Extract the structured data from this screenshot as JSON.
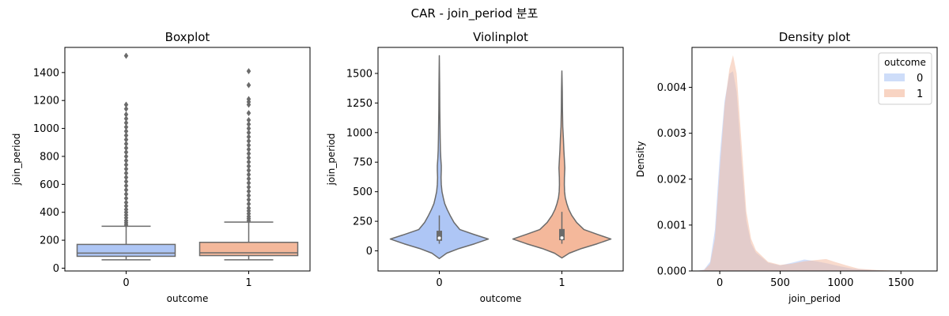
{
  "figure": {
    "suptitle": "CAR - join_period 분포"
  },
  "chart_data": [
    {
      "type": "box",
      "title": "Boxplot",
      "xlabel": "outcome",
      "ylabel": "join_period",
      "categories": [
        "0",
        "1"
      ],
      "ylim": [
        -20,
        1580
      ],
      "yticks": [
        0,
        200,
        400,
        600,
        800,
        1000,
        1200,
        1400
      ],
      "colors": [
        "#aec6f5",
        "#f4b89b"
      ],
      "boxes": [
        {
          "category": "0",
          "whislo": 60,
          "q1": 85,
          "median": 108,
          "q3": 170,
          "whishi": 300,
          "fliers": [
            310,
            325,
            340,
            360,
            380,
            400,
            420,
            445,
            470,
            500,
            530,
            560,
            590,
            620,
            650,
            680,
            710,
            740,
            770,
            800,
            830,
            860,
            890,
            920,
            950,
            980,
            1010,
            1040,
            1070,
            1100,
            1140,
            1170,
            1520
          ]
        },
        {
          "category": "1",
          "whislo": 60,
          "q1": 90,
          "median": 110,
          "q3": 185,
          "whishi": 330,
          "fliers": [
            340,
            355,
            370,
            390,
            410,
            430,
            460,
            490,
            520,
            550,
            580,
            610,
            640,
            670,
            700,
            730,
            760,
            790,
            820,
            850,
            880,
            910,
            940,
            970,
            1000,
            1030,
            1060,
            1110,
            1170,
            1190,
            1210,
            1310,
            1410
          ]
        }
      ]
    },
    {
      "type": "violin",
      "title": "Violinplot",
      "xlabel": "outcome",
      "ylabel": "join_period",
      "categories": [
        "0",
        "1"
      ],
      "ylim": [
        -170,
        1720
      ],
      "yticks": [
        0,
        250,
        500,
        750,
        1000,
        1250,
        1500
      ],
      "colors": [
        "#aec6f5",
        "#f4b89b"
      ],
      "violins": [
        {
          "category": "0",
          "ymin": -65,
          "ymax": 1650,
          "q1": 85,
          "median": 108,
          "q3": 170,
          "whislo": 60,
          "whishi": 300,
          "profile": [
            [
              -65,
              0.0
            ],
            [
              -20,
              0.15
            ],
            [
              20,
              0.4
            ],
            [
              60,
              0.72
            ],
            [
              100,
              1.0
            ],
            [
              140,
              0.7
            ],
            [
              180,
              0.42
            ],
            [
              240,
              0.3
            ],
            [
              300,
              0.22
            ],
            [
              350,
              0.16
            ],
            [
              400,
              0.11
            ],
            [
              450,
              0.08
            ],
            [
              500,
              0.055
            ],
            [
              560,
              0.04
            ],
            [
              620,
              0.035
            ],
            [
              680,
              0.04
            ],
            [
              720,
              0.04
            ],
            [
              780,
              0.03
            ],
            [
              850,
              0.022
            ],
            [
              950,
              0.018
            ],
            [
              1050,
              0.014
            ],
            [
              1200,
              0.01
            ],
            [
              1400,
              0.007
            ],
            [
              1650,
              0.0
            ]
          ]
        },
        {
          "category": "1",
          "ymin": -60,
          "ymax": 1520,
          "q1": 90,
          "median": 110,
          "q3": 185,
          "whislo": 60,
          "whishi": 330,
          "profile": [
            [
              -60,
              0.0
            ],
            [
              -20,
              0.15
            ],
            [
              20,
              0.4
            ],
            [
              60,
              0.72
            ],
            [
              100,
              1.0
            ],
            [
              140,
              0.72
            ],
            [
              180,
              0.45
            ],
            [
              240,
              0.3
            ],
            [
              300,
              0.2
            ],
            [
              350,
              0.14
            ],
            [
              400,
              0.1
            ],
            [
              450,
              0.07
            ],
            [
              500,
              0.055
            ],
            [
              560,
              0.05
            ],
            [
              620,
              0.052
            ],
            [
              700,
              0.06
            ],
            [
              780,
              0.05
            ],
            [
              850,
              0.04
            ],
            [
              950,
              0.03
            ],
            [
              1050,
              0.018
            ],
            [
              1200,
              0.012
            ],
            [
              1350,
              0.008
            ],
            [
              1520,
              0.0
            ]
          ]
        }
      ]
    },
    {
      "type": "area",
      "title": "Density plot",
      "xlabel": "join_period",
      "ylabel": "Density",
      "xlim": [
        -230,
        1800
      ],
      "ylim": [
        0,
        0.00487
      ],
      "xticks": [
        0,
        500,
        1000,
        1500
      ],
      "yticks": [
        0.0,
        0.001,
        0.002,
        0.003,
        0.004
      ],
      "ytick_labels": [
        "0.000",
        "0.001",
        "0.002",
        "0.003",
        "0.004"
      ],
      "grid": false,
      "legend": {
        "title": "outcome",
        "position": "top-right"
      },
      "series": [
        {
          "name": "0",
          "color": "#aec6f5",
          "points": [
            [
              -200,
              0.0
            ],
            [
              -130,
              3e-05
            ],
            [
              -80,
              0.0002
            ],
            [
              -40,
              0.0009
            ],
            [
              0,
              0.0025
            ],
            [
              40,
              0.0037
            ],
            [
              80,
              0.0043
            ],
            [
              110,
              0.00435
            ],
            [
              140,
              0.0039
            ],
            [
              180,
              0.0024
            ],
            [
              220,
              0.0011
            ],
            [
              260,
              0.0006
            ],
            [
              300,
              0.0004
            ],
            [
              400,
              0.00018
            ],
            [
              500,
              0.00012
            ],
            [
              600,
              0.00018
            ],
            [
              700,
              0.00025
            ],
            [
              800,
              0.00021
            ],
            [
              900,
              0.00016
            ],
            [
              1000,
              0.0001
            ],
            [
              1100,
              5e-05
            ],
            [
              1250,
              2e-05
            ],
            [
              1400,
              5e-06
            ],
            [
              1700,
              0.0
            ]
          ]
        },
        {
          "name": "1",
          "color": "#f4b89b",
          "points": [
            [
              -200,
              0.0
            ],
            [
              -130,
              2e-05
            ],
            [
              -80,
              0.00015
            ],
            [
              -40,
              0.0007
            ],
            [
              0,
              0.0022
            ],
            [
              40,
              0.0036
            ],
            [
              80,
              0.0044
            ],
            [
              110,
              0.0047
            ],
            [
              140,
              0.0043
            ],
            [
              180,
              0.0028
            ],
            [
              220,
              0.0013
            ],
            [
              260,
              0.0007
            ],
            [
              300,
              0.00045
            ],
            [
              400,
              0.0002
            ],
            [
              500,
              0.00013
            ],
            [
              600,
              0.00016
            ],
            [
              700,
              0.00021
            ],
            [
              800,
              0.00024
            ],
            [
              880,
              0.00026
            ],
            [
              950,
              0.0002
            ],
            [
              1050,
              0.00012
            ],
            [
              1150,
              5e-05
            ],
            [
              1300,
              2e-05
            ],
            [
              1500,
              5e-06
            ],
            [
              1750,
              0.0
            ]
          ]
        }
      ]
    }
  ]
}
